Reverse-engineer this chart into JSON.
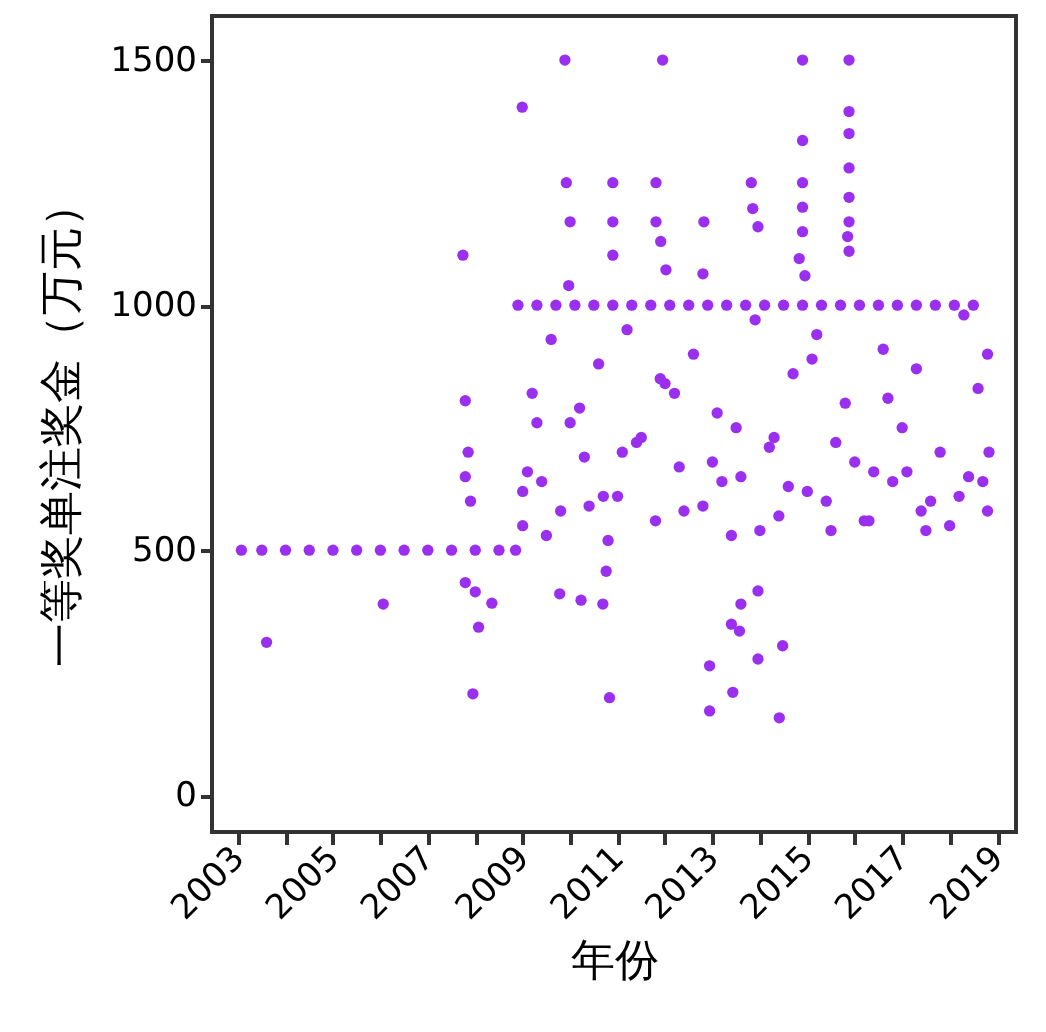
{
  "chart_data": {
    "type": "scatter",
    "xlabel": "年份",
    "ylabel": "一等奖单注奖金（万元）",
    "xlim": [
      2002.45,
      2019.4
    ],
    "ylim": [
      -75,
      1590
    ],
    "xticks": [
      2003,
      {
        "value": 2004,
        "label": null
      },
      2005,
      {
        "value": 2006,
        "label": null
      },
      2007,
      {
        "value": 2008,
        "label": null
      },
      2009,
      {
        "value": 2010,
        "label": null
      },
      2011,
      {
        "value": 2012,
        "label": null
      },
      2013,
      {
        "value": 2014,
        "label": null
      },
      2015,
      {
        "value": 2016,
        "label": null
      },
      2017,
      {
        "value": 2018,
        "label": null
      },
      2019
    ],
    "yticks": [
      0,
      500,
      1000,
      1500
    ],
    "grid": false,
    "marker": "circle",
    "series": [
      {
        "color": "#9b2ff0",
        "x": [
          2003.07,
          2003.5,
          2004.0,
          2004.5,
          2005.0,
          2005.5,
          2006.0,
          2006.5,
          2007.0,
          2007.5,
          2008.0,
          2008.5,
          2008.85,
          2003.6,
          2006.06,
          2007.74,
          2007.79,
          2007.79,
          2007.95,
          2007.79,
          2008.07,
          2008.35,
          2008.0,
          2007.85,
          2007.9,
          2008.99,
          2009.89,
          2011.95,
          2014.9,
          2015.88,
          2009.92,
          2010.9,
          2011.81,
          2013.82,
          2014.9,
          2015.88,
          2015.88,
          2010.0,
          2010.9,
          2011.81,
          2012.82,
          2010.9,
          2011.91,
          2012.02,
          2012.8,
          2013.85,
          2013.96,
          2014.9,
          2014.9,
          2014.9,
          2014.83,
          2014.95,
          2015.88,
          2015.88,
          2015.88,
          2015.85,
          2015.88,
          2009.97,
          2010.76,
          2009.78,
          2010.23,
          2010.69,
          2010.83,
          2012.94,
          2012.94,
          2013.43,
          2013.4,
          2013.6,
          2013.96,
          2013.96,
          2014.48,
          2014.41,
          2013.57,
          2008.9,
          2009.3,
          2009.7,
          2010.1,
          2010.5,
          2010.9,
          2011.3,
          2011.7,
          2012.1,
          2012.5,
          2012.9,
          2013.3,
          2013.7,
          2014.1,
          2014.5,
          2014.9,
          2015.3,
          2015.7,
          2016.1,
          2016.5,
          2016.9,
          2017.3,
          2017.7,
          2018.1,
          2018.5,
          2018.83,
          2009.0,
          2009.2,
          2009.4,
          2009.6,
          2009.8,
          2010.0,
          2010.3,
          2010.6,
          2010.8,
          2011.0,
          2011.2,
          2011.5,
          2011.8,
          2012.0,
          2012.3,
          2012.6,
          2012.8,
          2013.1,
          2013.4,
          2013.6,
          2013.9,
          2014.2,
          2014.4,
          2014.7,
          2015.0,
          2015.2,
          2015.5,
          2015.8,
          2016.0,
          2016.3,
          2016.6,
          2016.8,
          2017.0,
          2017.3,
          2017.6,
          2017.8,
          2018.0,
          2018.3,
          2018.6,
          2018.8,
          2009.1,
          2009.5,
          2010.2,
          2010.7,
          2011.4,
          2011.9,
          2012.4,
          2013.0,
          2013.5,
          2014.0,
          2014.6,
          2015.1,
          2015.6,
          2016.2,
          2016.7,
          2017.1,
          2017.5,
          2018.2,
          2018.7,
          2009.3,
          2010.4,
          2011.1,
          2012.2,
          2013.2,
          2014.3,
          2015.4,
          2016.4,
          2017.4,
          2018.4,
          2009.0,
          2018.8
        ],
        "values": [
          500,
          500,
          500,
          500,
          500,
          500,
          500,
          500,
          500,
          500,
          500,
          500,
          500,
          312,
          390,
          1102,
          805,
          650,
          207,
          434,
          343,
          392,
          415,
          700,
          600,
          1404,
          1500,
          1500,
          1500,
          1500,
          1250,
          1250,
          1250,
          1250,
          1336,
          1350,
          1395,
          1170,
          1170,
          1170,
          1170,
          1102,
          1130,
          1072,
          1064,
          1197,
          1160,
          1250,
          1200,
          1150,
          1095,
          1060,
          1280,
          1220,
          1170,
          1140,
          1110,
          1040,
          457,
          411,
          398,
          390,
          199,
          264,
          172,
          210,
          349,
          390,
          417,
          278,
          305,
          158,
          335,
          1000,
          1000,
          1000,
          1000,
          1000,
          1000,
          1000,
          1000,
          1000,
          1000,
          1000,
          1000,
          1000,
          1000,
          1000,
          1000,
          1000,
          1000,
          1000,
          1000,
          1000,
          1000,
          1000,
          1000,
          1000,
          700,
          550,
          820,
          640,
          930,
          580,
          760,
          690,
          880,
          520,
          610,
          950,
          730,
          560,
          840,
          670,
          900,
          590,
          780,
          530,
          650,
          970,
          710,
          570,
          860,
          620,
          940,
          540,
          800,
          680,
          560,
          910,
          640,
          750,
          870,
          600,
          700,
          550,
          980,
          830,
          900,
          660,
          530,
          790,
          610,
          720,
          850,
          580,
          680,
          750,
          540,
          630,
          890,
          720,
          560,
          810,
          660,
          540,
          610,
          640,
          760,
          590,
          700,
          820,
          640,
          730,
          600,
          660,
          580,
          650,
          620,
          580
        ]
      }
    ]
  }
}
